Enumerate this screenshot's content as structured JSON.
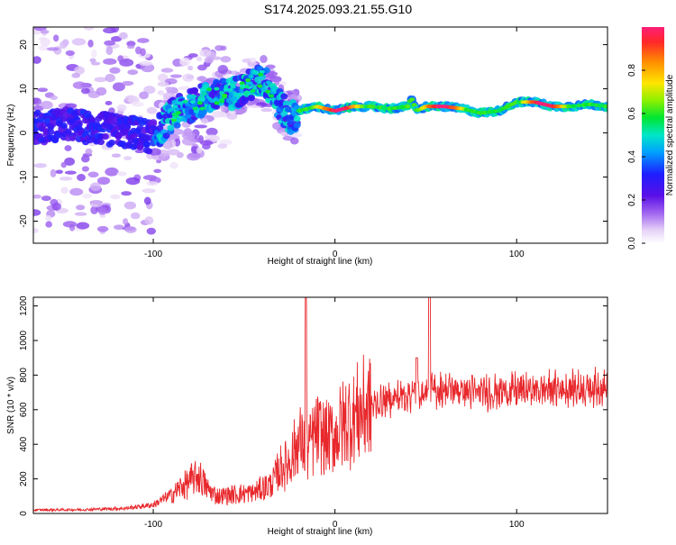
{
  "title": "S174.2025.093.21.55.G10",
  "chart_data": [
    {
      "type": "heatmap",
      "xlabel": "Height of straight line (km)",
      "ylabel": "Frequency (Hz)",
      "xlim": [
        -166,
        150
      ],
      "ylim": [
        -25,
        24
      ],
      "x_ticks": [
        -100,
        0,
        100
      ],
      "y_ticks": [
        -20,
        -10,
        0,
        10,
        20
      ],
      "colorbar": {
        "label": "Normalized spectral amplitude",
        "ticks": [
          0.0,
          0.2,
          0.4,
          0.6,
          0.8
        ],
        "range": [
          0,
          1
        ]
      },
      "ridge": {
        "x": [
          -166,
          -150,
          -130,
          -110,
          -100,
          -90,
          -80,
          -70,
          -60,
          -50,
          -40,
          -35,
          -30,
          -25,
          -20,
          -10,
          0,
          10,
          20,
          30,
          40,
          42,
          45,
          50,
          60,
          70,
          80,
          90,
          95,
          100,
          110,
          120,
          130,
          140,
          150
        ],
        "y": [
          1,
          2,
          1,
          0,
          -1,
          4,
          6,
          8,
          8.5,
          10,
          12,
          10,
          6,
          3,
          5,
          6,
          5,
          6,
          6,
          5.5,
          6,
          8,
          5,
          6,
          6,
          5.5,
          4.5,
          5,
          6,
          7,
          7,
          6,
          6,
          6.5,
          6
        ]
      }
    },
    {
      "type": "line",
      "xlabel": "Height of straight line (km)",
      "ylabel": "SNR (10 * v/v)",
      "xlim": [
        -166,
        150
      ],
      "ylim": [
        0,
        1250
      ],
      "x_ticks": [
        -100,
        0,
        100
      ],
      "y_ticks": [
        0,
        200,
        400,
        600,
        800,
        1000,
        1200
      ],
      "color": "#e8282c",
      "envelope": {
        "x": [
          -166,
          -140,
          -115,
          -100,
          -90,
          -82,
          -75,
          -70,
          -65,
          -55,
          -45,
          -35,
          -30,
          -25,
          -20,
          -15,
          -10,
          -5,
          0,
          5,
          10,
          15,
          20,
          30,
          40,
          50,
          60,
          80,
          100,
          120,
          150
        ],
        "y": [
          20,
          22,
          30,
          50,
          110,
          170,
          220,
          140,
          100,
          110,
          120,
          170,
          260,
          300,
          420,
          380,
          470,
          430,
          450,
          520,
          560,
          590,
          620,
          660,
          690,
          700,
          720,
          700,
          710,
          720,
          730
        ]
      },
      "spikes": [
        {
          "x": -16,
          "y": 1250
        },
        {
          "x": 52,
          "y": 1250
        },
        {
          "x": 45,
          "y": 900
        }
      ]
    }
  ]
}
